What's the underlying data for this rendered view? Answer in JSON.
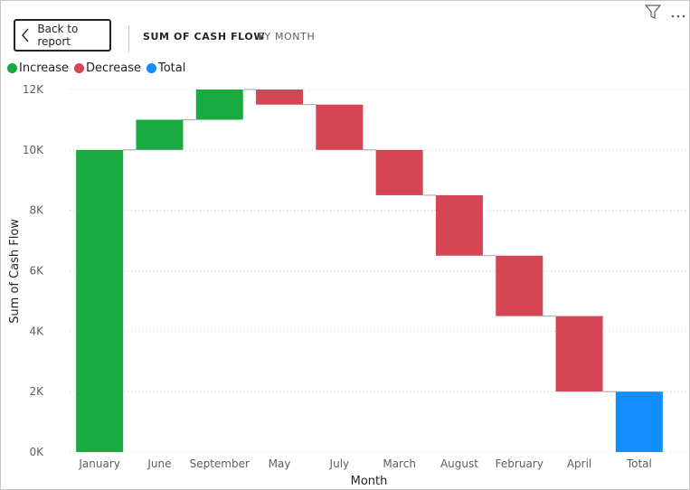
{
  "header": {
    "back_label": "Back to report",
    "title_main": "SUM OF CASH FLOW",
    "title_sub": "BY MONTH"
  },
  "icons": {
    "back": "chevron-left-icon",
    "filter": "filter-icon",
    "more": "more-options-icon"
  },
  "legend": [
    {
      "label": "Increase",
      "color": "#1aab40"
    },
    {
      "label": "Decrease",
      "color": "#d64554"
    },
    {
      "label": "Total",
      "color": "#118dff"
    }
  ],
  "chart_data": {
    "type": "waterfall",
    "xlabel": "Month",
    "ylabel": "Sum of Cash Flow",
    "ylim": [
      0,
      12000
    ],
    "yticks": [
      0,
      2000,
      4000,
      6000,
      8000,
      10000,
      12000
    ],
    "ytick_labels": [
      "0K",
      "2K",
      "4K",
      "6K",
      "8K",
      "10K",
      "12K"
    ],
    "grid": true,
    "legend_position": "top-left",
    "categories": [
      "January",
      "June",
      "September",
      "May",
      "July",
      "March",
      "August",
      "February",
      "April",
      "Total"
    ],
    "values": [
      10000,
      1000,
      1000,
      -500,
      -1500,
      -1500,
      -2000,
      -2000,
      -2500,
      2000
    ],
    "kinds": [
      "increase",
      "increase",
      "increase",
      "decrease",
      "decrease",
      "decrease",
      "decrease",
      "decrease",
      "decrease",
      "total"
    ],
    "colors": {
      "increase": "#1aab40",
      "decrease": "#d64554",
      "total": "#118dff"
    }
  }
}
